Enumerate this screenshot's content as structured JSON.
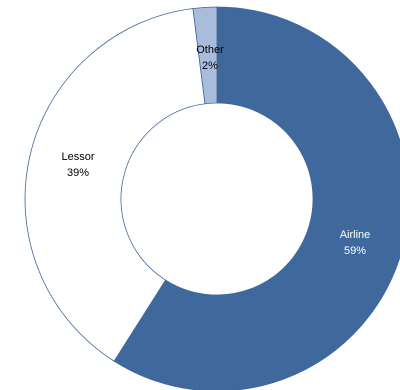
{
  "chart_data": {
    "type": "pie",
    "donut": true,
    "categories": [
      "Airline",
      "Lessor",
      "Other"
    ],
    "values": [
      59,
      39,
      2
    ],
    "value_labels": [
      "59%",
      "39%",
      "2%"
    ],
    "start_angle_deg": 0,
    "direction": "clockwise",
    "colors": {
      "Airline": "#3f689c",
      "Lessor": "#ffffff",
      "Other": "#a9bcdb",
      "outline": "#3f689c",
      "label_on_dark": "#ffffff",
      "label_on_light": "#000000"
    }
  }
}
